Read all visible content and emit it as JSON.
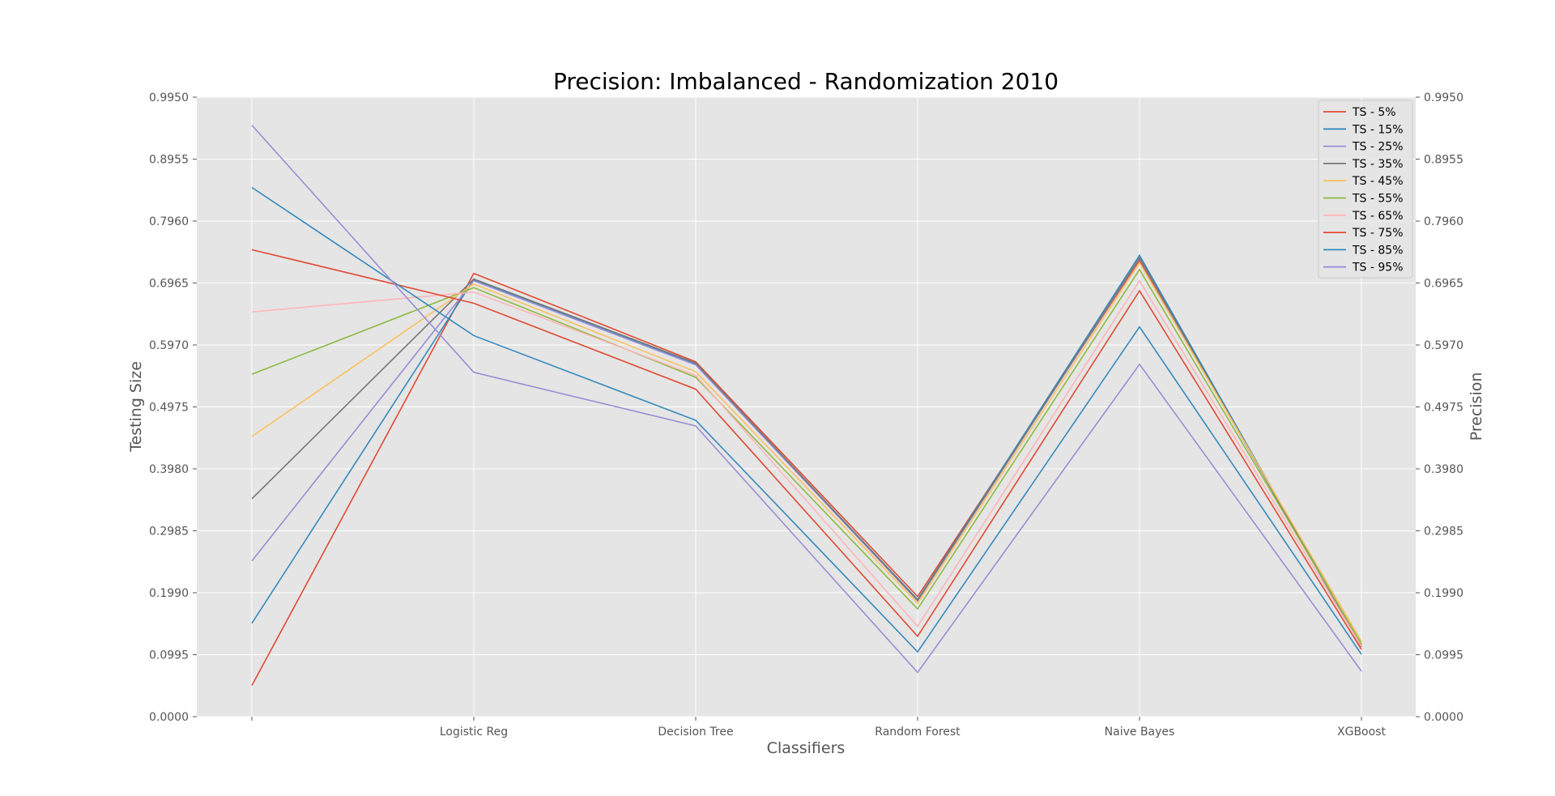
{
  "chart_data": {
    "type": "line",
    "title": "Precision: Imbalanced - Randomization 2010",
    "xlabel": "Classifiers",
    "ylabel": "Testing Size",
    "ylabel_right": "Precision",
    "categories": [
      "",
      "Logistic Reg",
      "Decision Tree",
      "Random Forest",
      "Naive Bayes",
      "XGBoost"
    ],
    "ylim": [
      0.0,
      0.995
    ],
    "yticks": [
      "0.0000",
      "0.0995",
      "0.1990",
      "0.2985",
      "0.3980",
      "0.4975",
      "0.5970",
      "0.6965",
      "0.7960",
      "0.8955",
      "0.9950"
    ],
    "grid": true,
    "background": "#e5e5e5",
    "legend_position": "top-right",
    "series": [
      {
        "name": "TS - 5%",
        "color": "#E24A33",
        "values": [
          0.05,
          0.712,
          0.57,
          0.193,
          0.733,
          0.115
        ]
      },
      {
        "name": "TS - 15%",
        "color": "#348ABD",
        "values": [
          0.15,
          0.702,
          0.567,
          0.188,
          0.741,
          0.113
        ]
      },
      {
        "name": "TS - 25%",
        "color": "#988ED5",
        "values": [
          0.25,
          0.7,
          0.565,
          0.186,
          0.736,
          0.112
        ]
      },
      {
        "name": "TS - 35%",
        "color": "#777777",
        "values": [
          0.35,
          0.703,
          0.568,
          0.187,
          0.737,
          0.112
        ]
      },
      {
        "name": "TS - 45%",
        "color": "#FBC15E",
        "values": [
          0.45,
          0.695,
          0.554,
          0.182,
          0.729,
          0.121
        ]
      },
      {
        "name": "TS - 55%",
        "color": "#8EBA42",
        "values": [
          0.55,
          0.689,
          0.545,
          0.173,
          0.718,
          0.117
        ]
      },
      {
        "name": "TS - 65%",
        "color": "#FFB5B8",
        "values": [
          0.65,
          0.682,
          0.548,
          0.145,
          0.7,
          0.113
        ]
      },
      {
        "name": "TS - 75%",
        "color": "#E24A33",
        "values": [
          0.75,
          0.664,
          0.526,
          0.129,
          0.684,
          0.108
        ]
      },
      {
        "name": "TS - 85%",
        "color": "#348ABD",
        "values": [
          0.85,
          0.612,
          0.476,
          0.104,
          0.626,
          0.1
        ]
      },
      {
        "name": "TS - 95%",
        "color": "#988ED5",
        "values": [
          0.95,
          0.553,
          0.467,
          0.071,
          0.566,
          0.073
        ]
      }
    ]
  }
}
